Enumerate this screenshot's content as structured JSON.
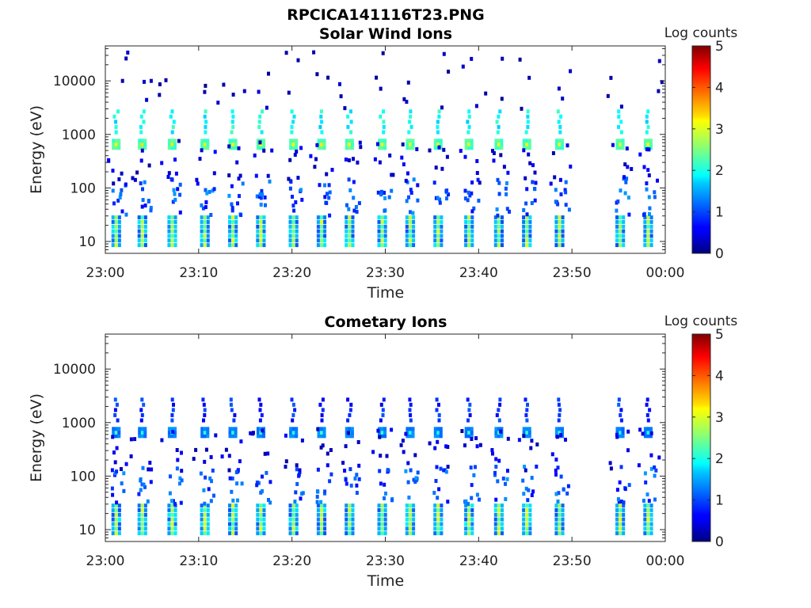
{
  "figure_title": "RPCICA141116T23.PNG",
  "colors": {
    "axis": "#262626",
    "background": "#ffffff"
  },
  "chart_data": [
    {
      "type": "heatmap",
      "title": "Solar Wind Ions",
      "xlabel": "Time",
      "ylabel": "Energy (eV)",
      "x_range": [
        "23:00",
        "00:00"
      ],
      "x_ticks": [
        "23:00",
        "23:10",
        "23:20",
        "23:30",
        "23:40",
        "23:50",
        "00:00"
      ],
      "y_scale": "log",
      "y_range": [
        6,
        45000
      ],
      "y_ticks": [
        10,
        100,
        1000,
        10000
      ],
      "y_tick_labels": [
        "10",
        "100",
        "1000",
        "10000"
      ],
      "colorbar": {
        "label": "Log counts",
        "range": [
          0,
          5
        ],
        "ticks": [
          "0",
          "1",
          "2",
          "3",
          "4",
          "5"
        ],
        "colormap": "jet"
      },
      "scan_times_min": [
        1,
        3.8,
        7,
        10.5,
        13.5,
        16.5,
        20,
        23,
        26,
        29.5,
        32.5,
        35.5,
        38.8,
        42,
        45,
        48.5,
        55,
        58
      ],
      "description_bands": [
        {
          "energy_ev": 650,
          "peak_log_counts": 3
        },
        {
          "energy_ev": 1400,
          "peak_log_counts": 2
        },
        {
          "energy_ev": 15,
          "peak_log_counts": 2.5
        }
      ]
    },
    {
      "type": "heatmap",
      "title": "Cometary Ions",
      "xlabel": "Time",
      "ylabel": "Energy (eV)",
      "x_range": [
        "23:00",
        "00:00"
      ],
      "x_ticks": [
        "23:00",
        "23:10",
        "23:20",
        "23:30",
        "23:40",
        "23:50",
        "00:00"
      ],
      "y_scale": "log",
      "y_range": [
        6,
        45000
      ],
      "y_ticks": [
        10,
        100,
        1000,
        10000
      ],
      "y_tick_labels": [
        "10",
        "100",
        "1000",
        "10000"
      ],
      "colorbar": {
        "label": "Log counts",
        "range": [
          0,
          5
        ],
        "ticks": [
          "0",
          "1",
          "2",
          "3",
          "4",
          "5"
        ],
        "colormap": "jet"
      },
      "scan_times_min": [
        1,
        3.8,
        7,
        10.5,
        13.5,
        16.5,
        20,
        23,
        26,
        29.5,
        32.5,
        35.5,
        38.8,
        42,
        45,
        48.5,
        55,
        58
      ],
      "description_bands": [
        {
          "energy_ev": 650,
          "peak_log_counts": 2
        },
        {
          "energy_ev": 15,
          "peak_log_counts": 2.8
        }
      ]
    }
  ]
}
